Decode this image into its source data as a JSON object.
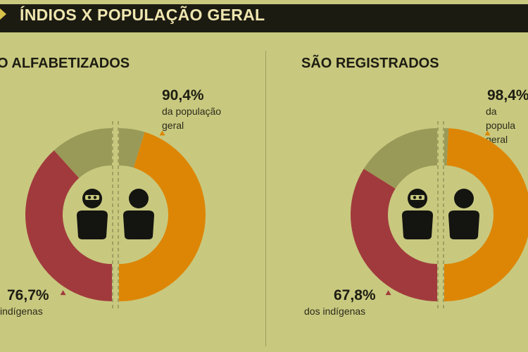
{
  "header": {
    "title": "ÍNDIOS X POPULAÇÃO GERAL"
  },
  "colors": {
    "background": "#c8c97f",
    "indigenous": "#a13a3d",
    "general": "#dd8606",
    "remainder": "#9a9a58",
    "icon": "#141410"
  },
  "chart_data": [
    {
      "type": "pie",
      "title": "O ALFABETIZADOS",
      "series": [
        {
          "name": "dos indígenas",
          "values": [
            76.7
          ]
        },
        {
          "name": "da população geral",
          "values": [
            90.4
          ]
        }
      ],
      "labels": {
        "indigenous_pct": "76,7%",
        "indigenous_desc": "indígenas",
        "general_pct": "90,4%",
        "general_desc": "da população\ngeral"
      }
    },
    {
      "type": "pie",
      "title": "SÃO REGISTRADOS",
      "series": [
        {
          "name": "dos indígenas",
          "values": [
            67.8
          ]
        },
        {
          "name": "da população geral",
          "values": [
            98.4
          ]
        }
      ],
      "labels": {
        "indigenous_pct": "67,8%",
        "indigenous_desc": "dos indígenas",
        "general_pct": "98,4%",
        "general_desc": "da popula\ngeral"
      }
    }
  ]
}
